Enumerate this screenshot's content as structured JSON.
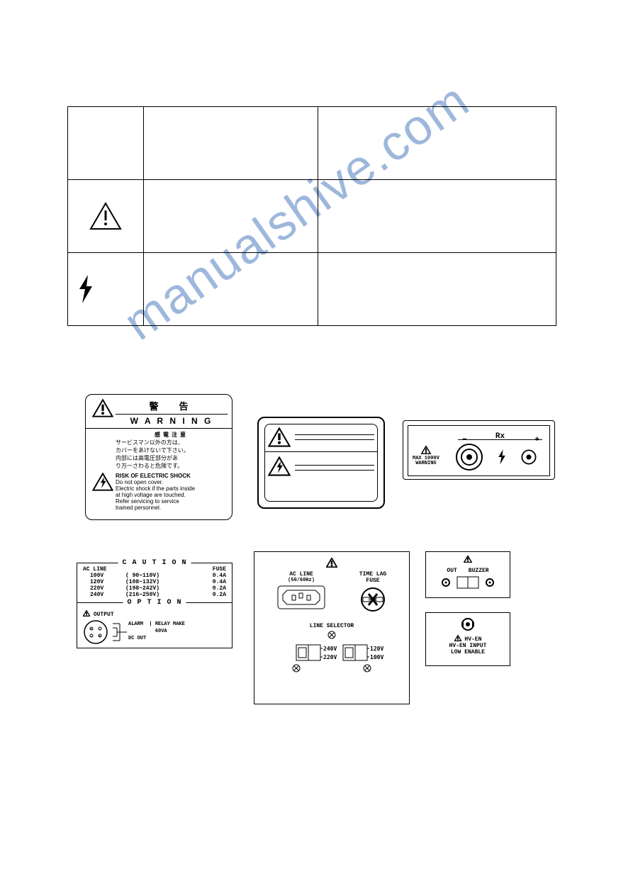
{
  "colors": {
    "line": "#000000",
    "bg": "#ffffff",
    "watermark": "#4f7ec1"
  },
  "table": {
    "rows": [
      {
        "icon": "",
        "col2": "",
        "col3": ""
      },
      {
        "icon": "caution",
        "col2": "",
        "col3": ""
      },
      {
        "icon": "bolt",
        "col2": "",
        "col3": ""
      }
    ]
  },
  "warning_label": {
    "jp_title": "警　告",
    "en_title": "W A R N I N G",
    "jp_sub": "感電注意",
    "jp_lines": [
      "サービスマン以外の方は、",
      "カバーをあけないで下さい。",
      "内部には高電圧部分があ",
      "り万一さわると危険です。"
    ],
    "en_sub": "RISK OF ELECTRIC SHOCK",
    "en_lines": [
      "Do not open cover.",
      "Electric shock if the parts inside",
      "at high voltage are touched.",
      "Refer servicing to service",
      "trained personnel."
    ]
  },
  "rx_panel": {
    "max": "MAX 1000V",
    "warn": "WARNING",
    "rx": "Rx",
    "minus": "−",
    "plus": "+"
  },
  "caution_table": {
    "title": "C A U T I O N",
    "head_l": "AC LINE",
    "head_r": "FUSE",
    "rows": [
      {
        "v": "100V",
        "r": "( 90~110V)",
        "f": "0.4A"
      },
      {
        "v": "120V",
        "r": "(108~132V)",
        "f": "0.4A"
      },
      {
        "v": "220V",
        "r": "(198~242V)",
        "f": "0.2A"
      },
      {
        "v": "240V",
        "r": "(216~250V)",
        "f": "0.2A"
      }
    ],
    "option_title": "O P T I O N",
    "output": "OUTPUT",
    "alarm": "ALARM",
    "make": "RELAY MAKE",
    "va": "60VA",
    "dc": "DC OUT"
  },
  "rear_panel": {
    "acline1": "AC LINE",
    "acline2": "(50/60Hz)",
    "fuse1": "TIME LAG",
    "fuse2": "FUSE",
    "sel": "LINE SELECTOR",
    "sw": [
      "240V",
      "120V",
      "220V",
      "100V"
    ]
  },
  "buzzer_panel": {
    "out": "OUT",
    "buzzer": "BUZZER"
  },
  "hv_panel": {
    "l1": "HV-EN",
    "l2": "HV-EN INPUT",
    "l3": "LOW ENABLE"
  },
  "watermark": "manualshive.com"
}
